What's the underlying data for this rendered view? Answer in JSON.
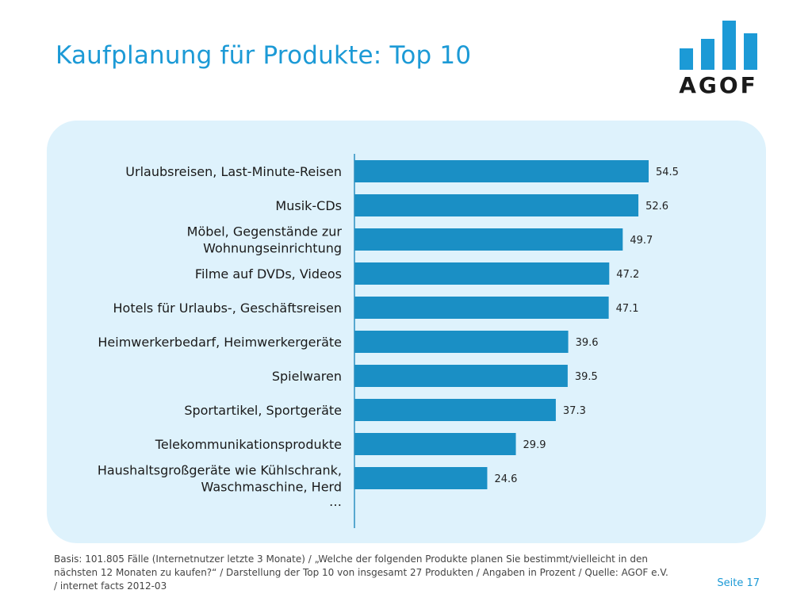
{
  "slide": {
    "title": "Kaufplanung für Produkte: Top 10",
    "logo_text": "AGOF",
    "footer": "Basis: 101.805 Fälle (Internetnutzer letzte 3 Monate) / „Welche der folgenden Produkte planen Sie bestimmt/vielleicht in den nächsten 12 Monaten zu kaufen?“ / Darstellung der Top 10 von insgesamt 27 Produkten / Angaben in Prozent / Quelle: AGOF e.V. / internet facts 2012-03",
    "page_number": "Seite 17"
  },
  "colors": {
    "accent": "#1c9ad6",
    "bar": "#1a8fc5",
    "panel": "#def2fc",
    "logo_dark": "#1a1a1a"
  },
  "chart_data": {
    "type": "bar",
    "orientation": "horizontal",
    "categories": [
      "Urlaubsreisen, Last-Minute-Reisen",
      "Musik-CDs",
      "Möbel, Gegenstände zur Wohnungseinrichtung",
      "Filme auf DVDs, Videos",
      "Hotels für Urlaubs-, Geschäftsreisen",
      "Heimwerkerbedarf, Heimwerkergeräte",
      "Spielwaren",
      "Sportartikel, Sportgeräte",
      "Telekommunikationsprodukte",
      "Haushaltsgroßgeräte wie Kühlschrank, Waschmaschine, Herd"
    ],
    "category_lines": [
      [
        "Urlaubsreisen, Last-Minute-Reisen"
      ],
      [
        "Musik-CDs"
      ],
      [
        "Möbel, Gegenstände zur",
        "Wohnungseinrichtung"
      ],
      [
        "Filme auf DVDs, Videos"
      ],
      [
        "Hotels für Urlaubs-, Geschäftsreisen"
      ],
      [
        "Heimwerkerbedarf, Heimwerkergeräte"
      ],
      [
        "Spielwaren"
      ],
      [
        "Sportartikel, Sportgeräte"
      ],
      [
        "Telekommunikationsprodukte"
      ],
      [
        "Haushaltsgroßgeräte wie Kühlschrank,",
        "Waschmaschine, Herd"
      ]
    ],
    "values": [
      54.5,
      52.6,
      49.7,
      47.2,
      47.1,
      39.6,
      39.5,
      37.3,
      29.9,
      24.6
    ],
    "value_labels": [
      "54.5",
      "52.6",
      "49.7",
      "47.2",
      "47.1",
      "39.6",
      "39.5",
      "37.3",
      "29.9",
      "24.6"
    ],
    "trailing_label": "…",
    "xlim": [
      0,
      60
    ],
    "grid": false,
    "legend": "none"
  }
}
